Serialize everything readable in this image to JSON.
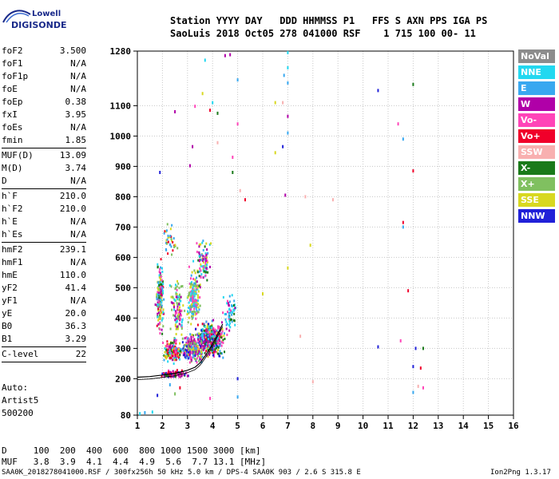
{
  "logo": {
    "line1": "Lowell",
    "line2": "DIGISONDE"
  },
  "header": {
    "row1": "Station YYYY DAY   DDD HHMMSS P1   FFS S AXN PPS IGA PS",
    "row2": "SaoLuis 2018 Oct05 278 041000 RSF    1 715 100 00- 11"
  },
  "params": [
    {
      "k": "foF2",
      "v": "3.500"
    },
    {
      "k": "foF1",
      "v": "N/A"
    },
    {
      "k": "foF1p",
      "v": "N/A"
    },
    {
      "k": "foE",
      "v": "N/A"
    },
    {
      "k": "foEp",
      "v": "0.38"
    },
    {
      "k": "fxI",
      "v": "3.95"
    },
    {
      "k": "foEs",
      "v": "N/A"
    },
    {
      "k": "fmin",
      "v": "1.85"
    },
    {
      "sep": true
    },
    {
      "k": "MUF(D)",
      "v": "13.09"
    },
    {
      "k": "M(D)",
      "v": "3.74"
    },
    {
      "k": "D",
      "v": "N/A"
    },
    {
      "sep": true
    },
    {
      "k": "h`F",
      "v": "210.0"
    },
    {
      "k": "h`F2",
      "v": "210.0"
    },
    {
      "k": "h`E",
      "v": "N/A"
    },
    {
      "k": "h`Es",
      "v": "N/A"
    },
    {
      "sep": true
    },
    {
      "k": "hmF2",
      "v": "239.1"
    },
    {
      "k": "hmF1",
      "v": "N/A"
    },
    {
      "k": "hmE",
      "v": "110.0"
    },
    {
      "k": "yF2",
      "v": "41.4"
    },
    {
      "k": "yF1",
      "v": "N/A"
    },
    {
      "k": "yE",
      "v": "20.0"
    },
    {
      "k": "B0",
      "v": "36.3"
    },
    {
      "k": "B1",
      "v": "3.29"
    },
    {
      "sep": true
    },
    {
      "k": "C-level",
      "v": "22"
    },
    {
      "sep": true
    }
  ],
  "autoscale": {
    "line1": "Auto:",
    "line2": "Artist5",
    "line3": "500200"
  },
  "legend": [
    {
      "label": "NoVal",
      "color": "#8c8c8c"
    },
    {
      "label": "NNE",
      "color": "#22d8f0"
    },
    {
      "label": "E",
      "color": "#38a8f0"
    },
    {
      "label": "W",
      "color": "#b000a8"
    },
    {
      "label": "Vo-",
      "color": "#ff44b8"
    },
    {
      "label": "Vo+",
      "color": "#f0002a"
    },
    {
      "label": "SSW",
      "color": "#f8b0b0"
    },
    {
      "label": "X-",
      "color": "#1a7a1a"
    },
    {
      "label": "X+",
      "color": "#80c060"
    },
    {
      "label": "SSE",
      "color": "#d8d820"
    },
    {
      "label": "NNW",
      "color": "#2020d8"
    }
  ],
  "bottom": {
    "d_row": "D     100  200  400  600  800 1000 1500 3000 [km]",
    "muf_row": "MUF   3.8  3.9  4.1  4.4  4.9  5.6  7.7 13.1 [MHz]"
  },
  "footer": "SAA0K_2018278041000.RSF / 300fx256h 50 kHz 5.0 km / DPS-4 SAA0K 903 / 2.6 S 315.8 E",
  "version": "Ion2Png 1.3.17",
  "chart_data": {
    "type": "scatter",
    "xlim": [
      1,
      16
    ],
    "ylim": [
      80,
      1280
    ],
    "x_ticks": [
      1,
      2,
      3,
      4,
      5,
      6,
      7,
      8,
      9,
      10,
      11,
      12,
      13,
      14,
      15,
      16
    ],
    "y_ticks": [
      80,
      200,
      300,
      400,
      500,
      600,
      700,
      800,
      900,
      1000,
      1100,
      1280
    ],
    "x_tick_labels": [
      "1",
      "2",
      "3",
      "4",
      "5",
      "6",
      "7",
      "8",
      "9",
      "10",
      "11",
      "12",
      "13",
      "14",
      "15",
      "16"
    ],
    "y_tick_labels": [
      "80",
      "200",
      "300",
      "400",
      "500",
      "600",
      "700",
      "800",
      "900",
      "1000",
      "1100",
      "1280"
    ],
    "grid": true,
    "trace_points": [
      [
        1.0,
        205
      ],
      [
        1.5,
        207
      ],
      [
        2.0,
        212
      ],
      [
        2.5,
        218
      ],
      [
        3.0,
        228
      ],
      [
        3.3,
        238
      ],
      [
        3.5,
        252
      ],
      [
        3.7,
        275
      ],
      [
        3.9,
        300
      ],
      [
        4.1,
        330
      ],
      [
        4.4,
        380
      ]
    ],
    "scatter_points": [
      [
        4.5,
        1265,
        "W"
      ],
      [
        4.7,
        1268,
        "W"
      ],
      [
        3.7,
        1250,
        "NNE"
      ],
      [
        7.0,
        1275,
        "NNE"
      ],
      [
        7.0,
        1225,
        "NNE"
      ],
      [
        7.0,
        1175,
        "E"
      ],
      [
        6.85,
        1200,
        "E"
      ],
      [
        5.0,
        1185,
        "E"
      ],
      [
        4.0,
        1110,
        "NNE"
      ],
      [
        3.6,
        1140,
        "SSE"
      ],
      [
        3.3,
        1098,
        "Vo-"
      ],
      [
        2.5,
        1080,
        "W"
      ],
      [
        3.9,
        1085,
        "Vo+"
      ],
      [
        4.2,
        1075,
        "X-"
      ],
      [
        6.5,
        1110,
        "SSE"
      ],
      [
        6.8,
        1110,
        "SSW"
      ],
      [
        7.0,
        1065,
        "W"
      ],
      [
        5.0,
        1040,
        "Vo-"
      ],
      [
        7.0,
        1010,
        "E"
      ],
      [
        4.2,
        978,
        "SSW"
      ],
      [
        6.8,
        965,
        "NNW"
      ],
      [
        3.2,
        965,
        "W"
      ],
      [
        6.5,
        945,
        "SSE"
      ],
      [
        4.8,
        930,
        "Vo-"
      ],
      [
        10.6,
        1150,
        "NNW"
      ],
      [
        12.0,
        1170,
        "X-"
      ],
      [
        11.4,
        1040,
        "Vo-"
      ],
      [
        11.6,
        990,
        "E"
      ],
      [
        12.0,
        885,
        "Vo+"
      ],
      [
        1.9,
        880,
        "NNW"
      ],
      [
        3.1,
        902,
        "W"
      ],
      [
        4.8,
        880,
        "X-"
      ],
      [
        5.1,
        820,
        "SSW"
      ],
      [
        5.3,
        790,
        "Vo+"
      ],
      [
        6.9,
        805,
        "W"
      ],
      [
        7.7,
        800,
        "SSW"
      ],
      [
        8.8,
        790,
        "SSW"
      ],
      [
        11.6,
        715,
        "Vo+"
      ],
      [
        11.6,
        700,
        "E"
      ],
      [
        7.9,
        640,
        "SSE"
      ],
      [
        7.0,
        565,
        "SSE"
      ],
      [
        6.0,
        480,
        "SSE"
      ],
      [
        11.8,
        490,
        "Vo+"
      ],
      [
        7.5,
        340,
        "SSW"
      ],
      [
        10.6,
        305,
        "NNW"
      ],
      [
        11.5,
        325,
        "Vo-"
      ],
      [
        12.1,
        300,
        "NNW"
      ],
      [
        12.4,
        300,
        "X-"
      ],
      [
        12.0,
        240,
        "NNW"
      ],
      [
        12.3,
        235,
        "Vo+"
      ],
      [
        12.2,
        175,
        "SSW"
      ],
      [
        12.4,
        170,
        "Vo-"
      ],
      [
        12.0,
        155,
        "E"
      ],
      [
        5.0,
        200,
        "NNW"
      ],
      [
        5.0,
        140,
        "E"
      ],
      [
        8.0,
        190,
        "SSW"
      ],
      [
        2.7,
        170,
        "Vo+"
      ],
      [
        2.3,
        180,
        "E"
      ],
      [
        1.1,
        85,
        "NNE"
      ],
      [
        1.3,
        88,
        "E"
      ],
      [
        1.6,
        90,
        "NNE"
      ],
      [
        2.5,
        150,
        "X+"
      ],
      [
        1.8,
        145,
        "NNW"
      ],
      [
        3.9,
        135,
        "Vo-"
      ]
    ],
    "clusters": [
      {
        "cx": 3.9,
        "cy": 330,
        "w": 1.5,
        "h": 150,
        "n": 420,
        "colors": [
          "W",
          "NNW",
          "Vo-",
          "Vo+",
          "E",
          "NNE",
          "X-",
          "SSE"
        ]
      },
      {
        "cx": 3.2,
        "cy": 300,
        "w": 1.2,
        "h": 110,
        "n": 260,
        "colors": [
          "NNW",
          "W",
          "E",
          "Vo-",
          "SSE",
          "X+"
        ]
      },
      {
        "cx": 2.4,
        "cy": 290,
        "w": 0.9,
        "h": 90,
        "n": 200,
        "colors": [
          "SSE",
          "Vo-",
          "Vo+",
          "W",
          "X-",
          "NNE",
          "E"
        ]
      },
      {
        "cx": 3.25,
        "cy": 470,
        "w": 0.7,
        "h": 220,
        "n": 160,
        "colors": [
          "SSE",
          "X+",
          "NNE",
          "E",
          "Vo-"
        ]
      },
      {
        "cx": 3.6,
        "cy": 580,
        "w": 0.8,
        "h": 200,
        "n": 90,
        "colors": [
          "SSE",
          "Vo-",
          "NNE",
          "W",
          "X-",
          "E"
        ]
      },
      {
        "cx": 1.9,
        "cy": 470,
        "w": 0.4,
        "h": 340,
        "n": 170,
        "colors": [
          "NNE",
          "E",
          "X+",
          "SSE",
          "Vo-",
          "Vo+",
          "W",
          "X-"
        ]
      },
      {
        "cx": 2.6,
        "cy": 430,
        "w": 0.7,
        "h": 280,
        "n": 110,
        "colors": [
          "SSE",
          "Vo-",
          "X+",
          "W",
          "NNE"
        ]
      },
      {
        "cx": 4.7,
        "cy": 420,
        "w": 0.7,
        "h": 200,
        "n": 60,
        "colors": [
          "E",
          "NNE",
          "W",
          "X-",
          "Vo-"
        ]
      },
      {
        "cx": 2.3,
        "cy": 650,
        "w": 0.8,
        "h": 140,
        "n": 35,
        "colors": [
          "SSE",
          "Vo+",
          "X+",
          "E"
        ]
      },
      {
        "cx": 2.5,
        "cy": 215,
        "w": 1.4,
        "h": 30,
        "n": 120,
        "colors": [
          "Vo+",
          "W",
          "Vo-",
          "X-",
          "NNW"
        ]
      }
    ]
  }
}
